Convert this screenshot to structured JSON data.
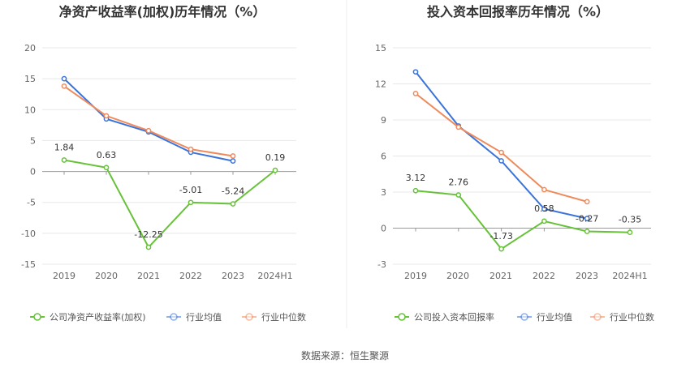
{
  "chart_data": [
    {
      "type": "line",
      "title": "净资产收益率(加权)历年情况（%）",
      "categories": [
        "2019",
        "2020",
        "2021",
        "2022",
        "2023",
        "2024H1"
      ],
      "ylim": [
        -15,
        20
      ],
      "yticks": [
        -15,
        -10,
        -5,
        0,
        5,
        10,
        15,
        20
      ],
      "legend_position": "bottom",
      "series": [
        {
          "name": "公司净资产收益率(加权)",
          "color": "#67c23a",
          "values": [
            1.84,
            0.63,
            -12.25,
            -5.01,
            -5.24,
            0.19
          ],
          "labels": [
            "1.84",
            "0.63",
            "-12.25",
            "-5.01",
            "-5.24",
            "0.19"
          ]
        },
        {
          "name": "行业均值",
          "color": "#3b74d9",
          "values": [
            15.0,
            8.5,
            6.4,
            3.1,
            1.7,
            null
          ]
        },
        {
          "name": "行业中位数",
          "color": "#ef8a5c",
          "values": [
            13.8,
            9.0,
            6.6,
            3.6,
            2.5,
            null
          ]
        }
      ]
    },
    {
      "type": "line",
      "title": "投入资本回报率历年情况（%）",
      "categories": [
        "2019",
        "2020",
        "2021",
        "2022",
        "2023",
        "2024H1"
      ],
      "ylim": [
        -3,
        15
      ],
      "yticks": [
        -3,
        0,
        3,
        6,
        9,
        12,
        15
      ],
      "legend_position": "bottom",
      "series": [
        {
          "name": "公司投入资本回报率",
          "color": "#67c23a",
          "values": [
            3.12,
            2.76,
            -1.73,
            0.58,
            -0.27,
            -0.35
          ],
          "labels": [
            "3.12",
            "2.76",
            "-1.73",
            "0.58",
            "-0.27",
            "-0.35"
          ]
        },
        {
          "name": "行业均值",
          "color": "#3b74d9",
          "values": [
            13.0,
            8.5,
            5.6,
            1.6,
            0.8,
            null
          ]
        },
        {
          "name": "行业中位数",
          "color": "#ef8a5c",
          "values": [
            11.2,
            8.4,
            6.3,
            3.2,
            2.2,
            null
          ]
        }
      ]
    }
  ],
  "source": "数据来源：恒生聚源"
}
